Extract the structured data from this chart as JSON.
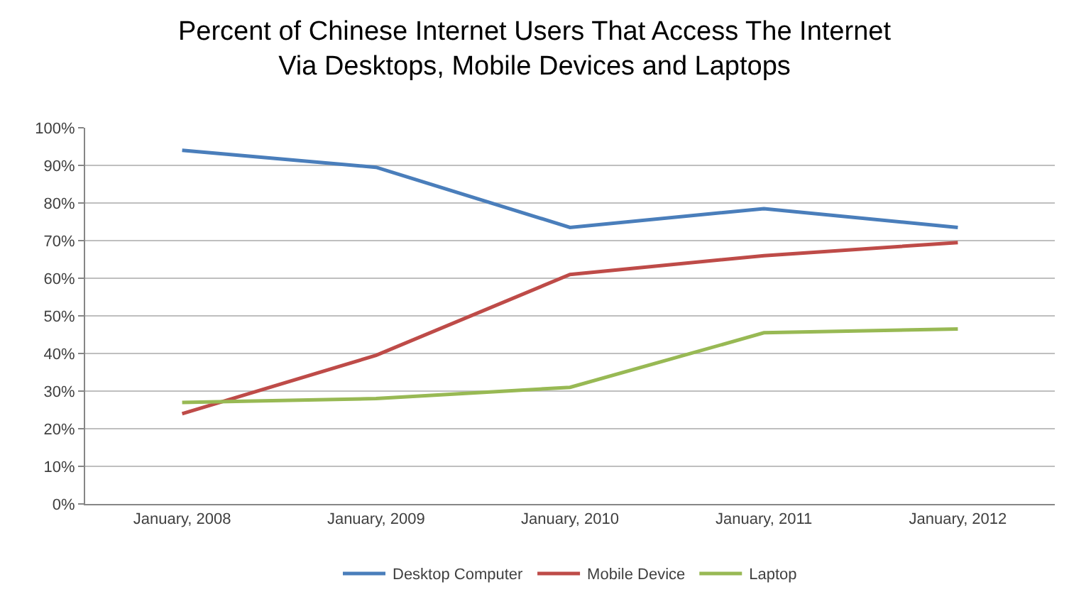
{
  "chart_data": {
    "type": "line",
    "title": "Percent of Chinese Internet Users That Access The Internet\nVia Desktops, Mobile Devices and Laptops",
    "categories": [
      "January, 2008",
      "January, 2009",
      "January, 2010",
      "January, 2011",
      "January, 2012"
    ],
    "series": [
      {
        "name": "Desktop Computer",
        "color": "#4a7ebb",
        "values": [
          94,
          89.5,
          73.5,
          78.5,
          73.5
        ]
      },
      {
        "name": "Mobile Device",
        "color": "#be4b48",
        "values": [
          24,
          39.5,
          61,
          66,
          69.5
        ]
      },
      {
        "name": "Laptop",
        "color": "#98b954",
        "values": [
          27,
          28,
          31,
          45.5,
          46.5
        ]
      }
    ],
    "ylim": [
      0,
      100
    ],
    "yticks": [
      {
        "value": 0,
        "label": "0%"
      },
      {
        "value": 10,
        "label": "10%"
      },
      {
        "value": 20,
        "label": "20%"
      },
      {
        "value": 30,
        "label": "30%"
      },
      {
        "value": 40,
        "label": "40%"
      },
      {
        "value": 50,
        "label": "50%"
      },
      {
        "value": 60,
        "label": "60%"
      },
      {
        "value": 70,
        "label": "70%"
      },
      {
        "value": 80,
        "label": "80%"
      },
      {
        "value": 90,
        "label": "90%"
      },
      {
        "value": 100,
        "label": "100%"
      }
    ],
    "grid": "y",
    "legend": "bottom",
    "marker": "none",
    "line_style": "solid"
  }
}
